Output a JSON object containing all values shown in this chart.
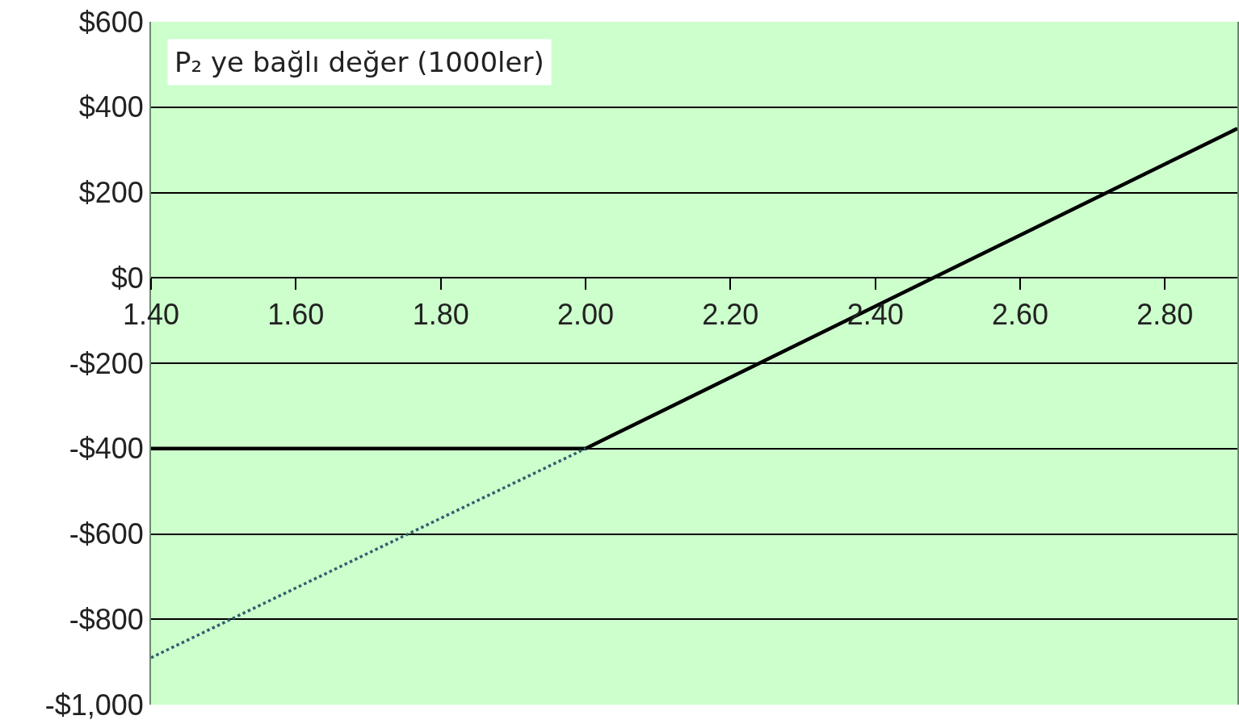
{
  "chart_data": {
    "type": "line",
    "title": "P₂ ye bağlı değer (1000ler)",
    "series": [
      {
        "color": "#000000",
        "line_style": "solid",
        "x": [
          1.4,
          2.0,
          2.9
        ],
        "values": [
          -400,
          -400,
          350
        ]
      },
      {
        "color": "#2f5f6f",
        "line_style": "dotted",
        "x": [
          1.4,
          2.0
        ],
        "values": [
          -890,
          -400
        ]
      }
    ],
    "xlim": [
      1.4,
      2.9
    ],
    "xticks": [
      {
        "value": 1.4,
        "label": "1.40"
      },
      {
        "value": 1.6,
        "label": "1.60"
      },
      {
        "value": 1.8,
        "label": "1.80"
      },
      {
        "value": 2.0,
        "label": "2.00"
      },
      {
        "value": 2.2,
        "label": "2.20"
      },
      {
        "value": 2.4,
        "label": "2.40"
      },
      {
        "value": 2.6,
        "label": "2.60"
      },
      {
        "value": 2.8,
        "label": "2.80"
      }
    ],
    "ylim": [
      -1000,
      600
    ],
    "yticks": [
      {
        "value": 600,
        "label": "$600"
      },
      {
        "value": 400,
        "label": "$400"
      },
      {
        "value": 200,
        "label": "$200"
      },
      {
        "value": 0,
        "label": "$0"
      },
      {
        "value": -200,
        "label": "-$200"
      },
      {
        "value": -400,
        "label": "-$400"
      },
      {
        "value": -600,
        "label": "-$600"
      },
      {
        "value": -800,
        "label": "-$800"
      },
      {
        "value": -1000,
        "label": "-$1,000"
      }
    ],
    "grid": "y",
    "marker": "none"
  }
}
